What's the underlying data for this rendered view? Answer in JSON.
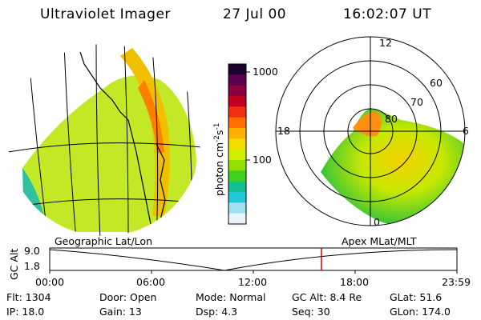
{
  "header": {
    "instrument": "Ultraviolet Imager",
    "date": "27 Jul 00",
    "time": "16:02:07 UT"
  },
  "colorbar": {
    "label": "photon cm",
    "label_exp1": "-2",
    "label_mid": "s",
    "label_exp2": "-1",
    "ticks": [
      "1000",
      "100"
    ],
    "colors": [
      "#1a0030",
      "#5a0050",
      "#8a0040",
      "#c00020",
      "#f03010",
      "#ff7000",
      "#ffb000",
      "#f4dc00",
      "#d0ee00",
      "#90e000",
      "#40d020",
      "#10c090",
      "#20c8d8",
      "#a0e0f0",
      "#e8f4f8"
    ]
  },
  "polar": {
    "mlt_labels": {
      "top": "12",
      "left": "18",
      "right": "6",
      "bottom": "0"
    },
    "lat_labels": [
      "60",
      "70",
      "80"
    ]
  },
  "timeline": {
    "left_label": "Geographic Lat/Lon",
    "right_label": "Apex MLat/MLT",
    "y_axis": "GC Alt",
    "y_ticks": [
      "9.0",
      "1.8"
    ],
    "x_ticks": [
      "00:00",
      "06:00",
      "12:00",
      "18:00",
      "23:59"
    ],
    "marker_time": "16:02"
  },
  "info": {
    "flt": "Flt: 1304",
    "ip": "IP: 18.0",
    "door": "Door: Open",
    "gain": "Gain: 13",
    "mode": "Mode: Normal",
    "dsp": "Dsp:     4.3",
    "gcalt": "GC Alt: 8.4 Re",
    "seq": "Seq: 30",
    "glat": "GLat:  51.6",
    "glon": "GLon: 174.0"
  }
}
